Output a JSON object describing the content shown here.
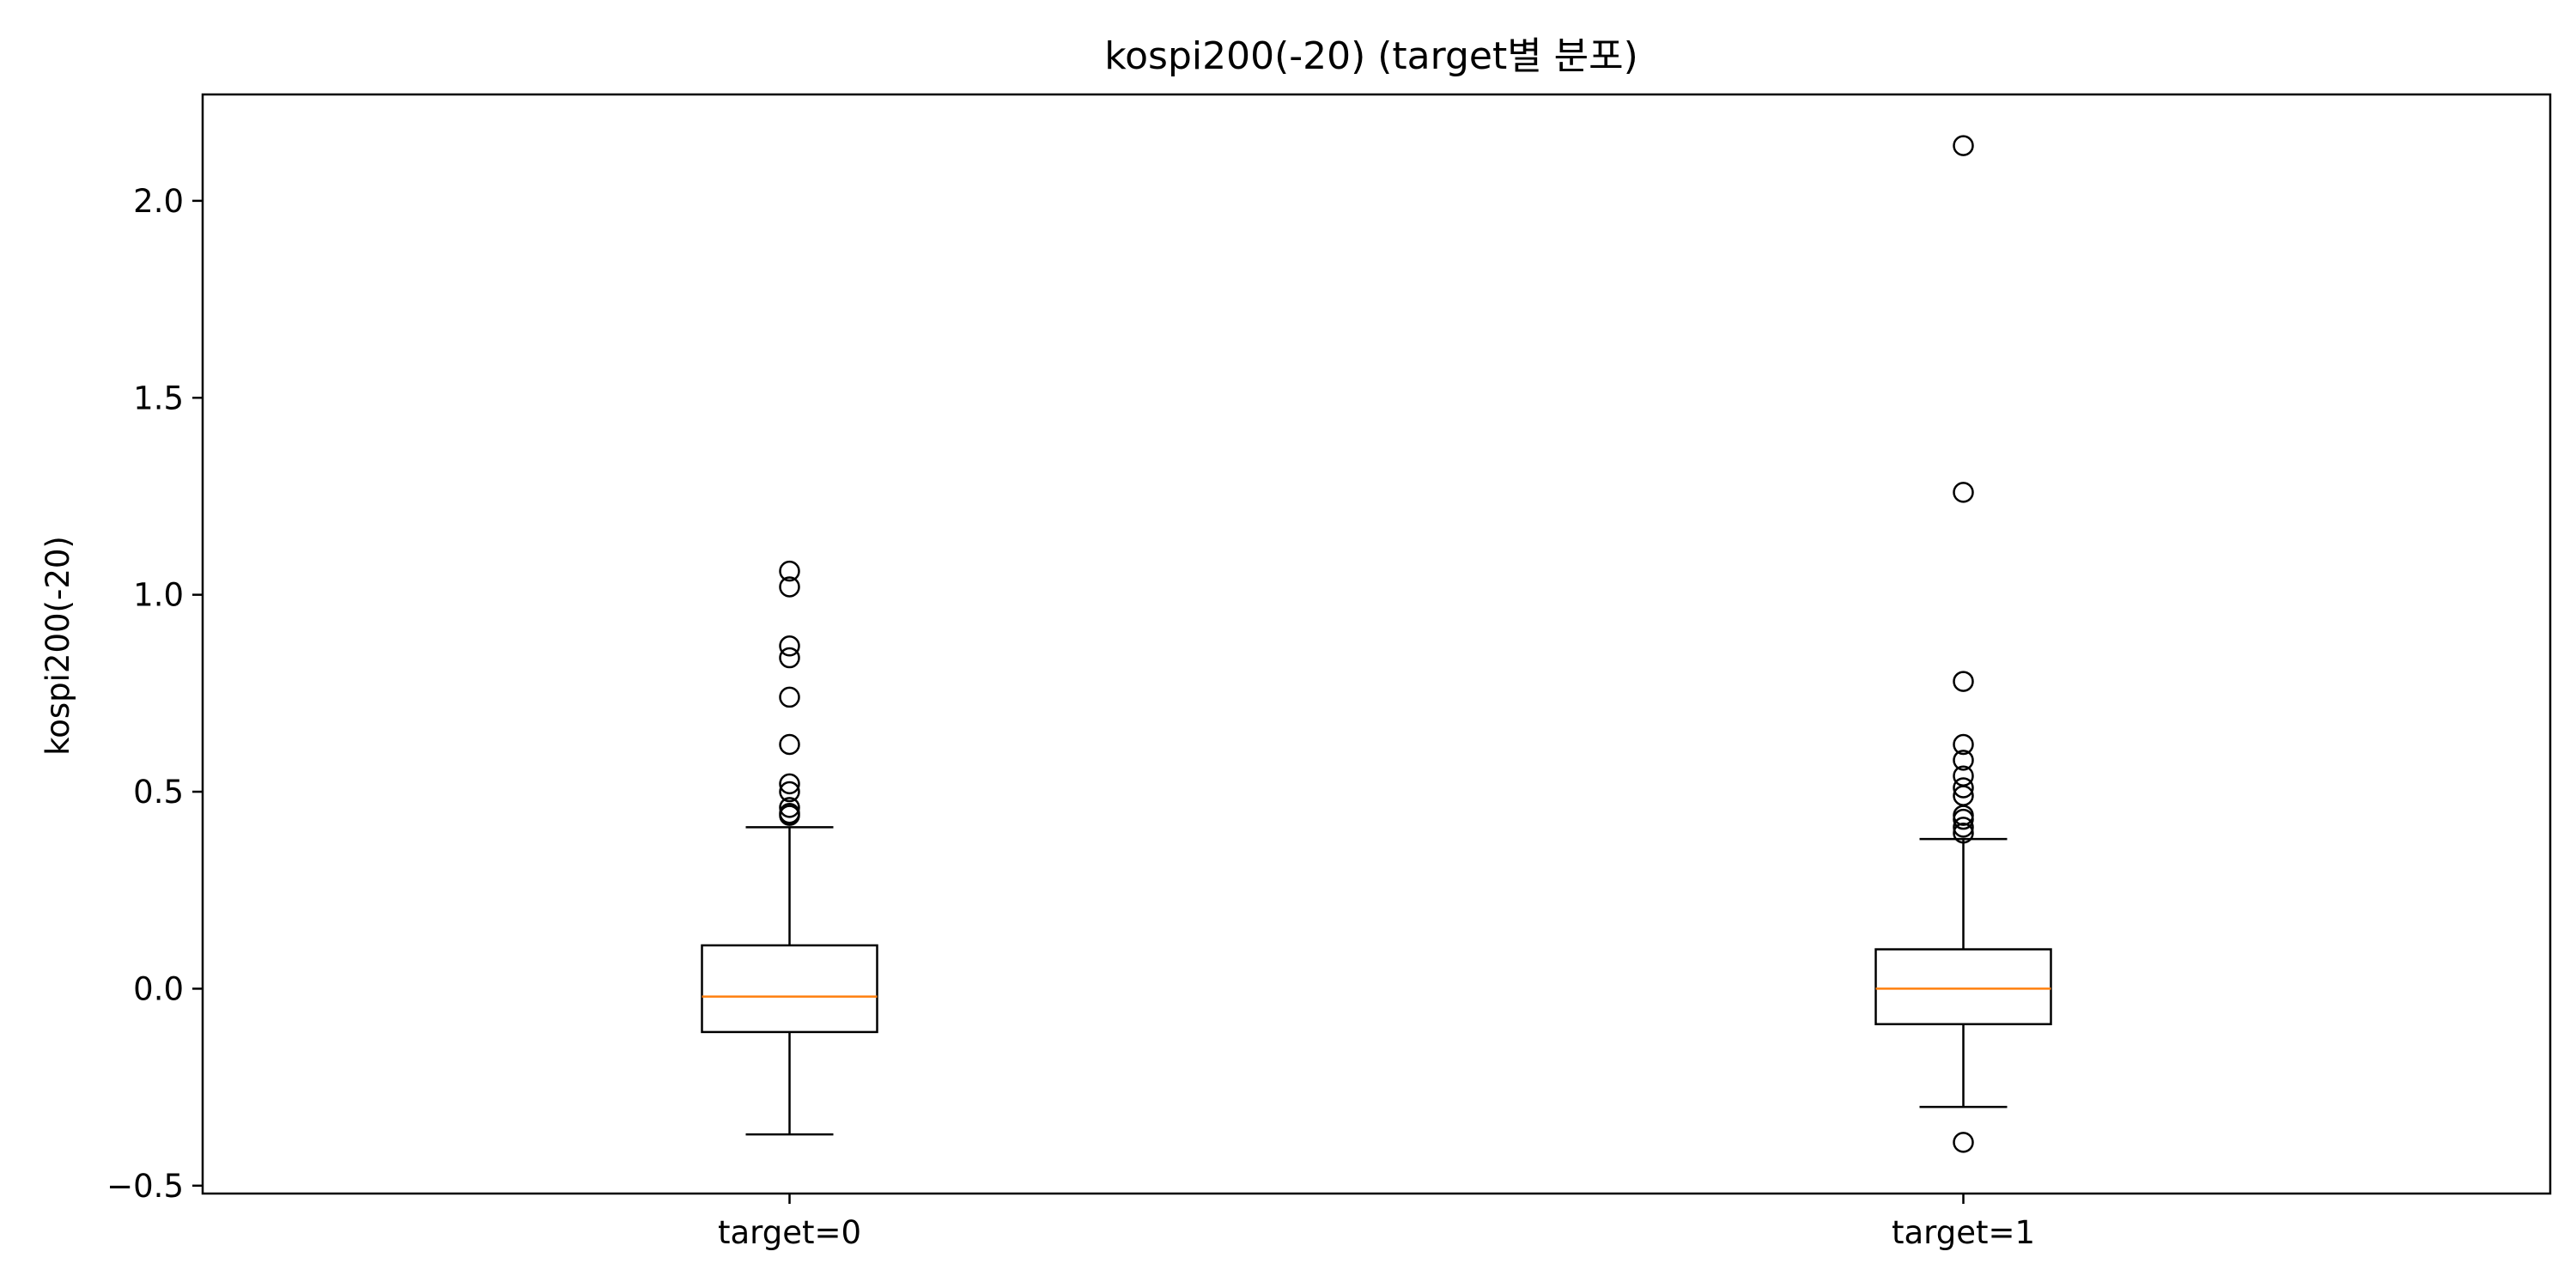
{
  "chart_data": {
    "type": "box",
    "title": "kospi200(-20) (target별 분포)",
    "xlabel": "",
    "ylabel": "kospi200(-20)",
    "ylim": [
      -0.52,
      2.27
    ],
    "yticks": [
      -0.5,
      0.0,
      0.5,
      1.0,
      1.5,
      2.0
    ],
    "ytick_labels": [
      "−0.5",
      "0.0",
      "0.5",
      "1.0",
      "1.5",
      "2.0"
    ],
    "grid": false,
    "categories": [
      "target=0",
      "target=1"
    ],
    "boxes": [
      {
        "name": "target=0",
        "whisker_low": -0.37,
        "q1": -0.11,
        "median": -0.02,
        "q3": 0.11,
        "whisker_high": 0.41,
        "outliers": [
          1.06,
          1.02,
          0.87,
          0.84,
          0.74,
          0.62,
          0.52,
          0.5,
          0.46,
          0.445,
          0.44
        ]
      },
      {
        "name": "target=1",
        "whisker_low": -0.3,
        "q1": -0.09,
        "median": 0.0,
        "q3": 0.1,
        "whisker_high": 0.38,
        "outliers": [
          2.14,
          1.26,
          0.78,
          0.62,
          0.58,
          0.54,
          0.51,
          0.49,
          0.44,
          0.43,
          0.41,
          0.395,
          -0.39
        ]
      }
    ],
    "colors": {
      "box": "#000000",
      "median": "#ff7f0e",
      "outlier": "#000000",
      "background": "#ffffff"
    }
  }
}
